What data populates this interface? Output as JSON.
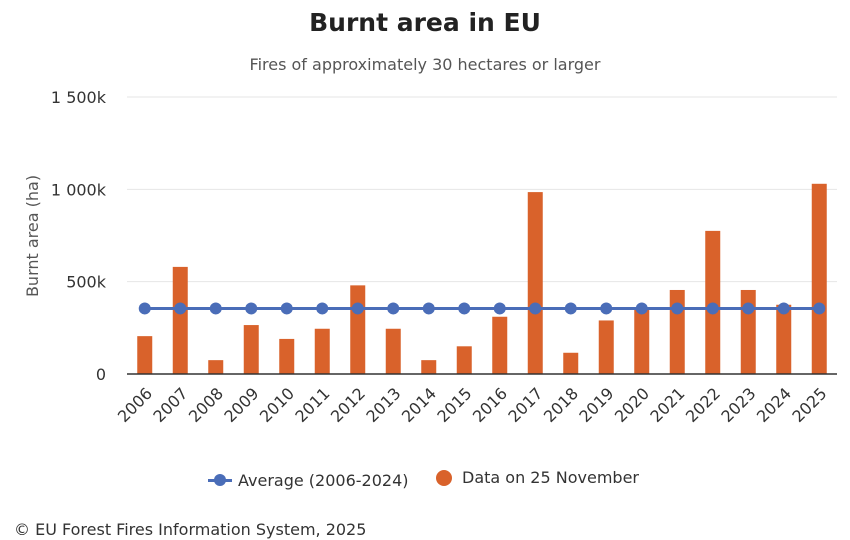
{
  "title": "Burnt area in EU",
  "subtitle": "Fires of approximately 30 hectares or larger",
  "footer": "© EU Forest Fires Information System, 2025",
  "colors": {
    "bars": "#d9622b",
    "average": "#4a6db8",
    "grid": "#e6e6e6",
    "axis": "#333333"
  },
  "legend": {
    "average_label": "Average (2006-2024)",
    "bars_label": "Data on 25 November"
  },
  "chart_data": {
    "type": "bar",
    "title": "Burnt area in EU",
    "subtitle": "Fires of approximately 30 hectares or larger",
    "xlabel": "",
    "ylabel": "Burnt area (ha)",
    "ylim": [
      0,
      1500000
    ],
    "yticks": [
      0,
      500000,
      1000000,
      1500000
    ],
    "ytick_labels": [
      "0",
      "500k",
      "1 000k",
      "1 500k"
    ],
    "grid": true,
    "legend_position": "bottom",
    "categories": [
      "2006",
      "2007",
      "2008",
      "2009",
      "2010",
      "2011",
      "2012",
      "2013",
      "2014",
      "2015",
      "2016",
      "2017",
      "2018",
      "2019",
      "2020",
      "2021",
      "2022",
      "2023",
      "2024",
      "2025"
    ],
    "series": [
      {
        "name": "Data on 25 November",
        "type": "bar",
        "values": [
          205000,
          580000,
          75000,
          265000,
          190000,
          245000,
          480000,
          245000,
          75000,
          150000,
          310000,
          985000,
          115000,
          290000,
          350000,
          455000,
          775000,
          455000,
          375000,
          1030000
        ]
      },
      {
        "name": "Average (2006-2024)",
        "type": "line",
        "values": [
          355000,
          355000,
          355000,
          355000,
          355000,
          355000,
          355000,
          355000,
          355000,
          355000,
          355000,
          355000,
          355000,
          355000,
          355000,
          355000,
          355000,
          355000,
          355000,
          355000
        ]
      }
    ]
  }
}
